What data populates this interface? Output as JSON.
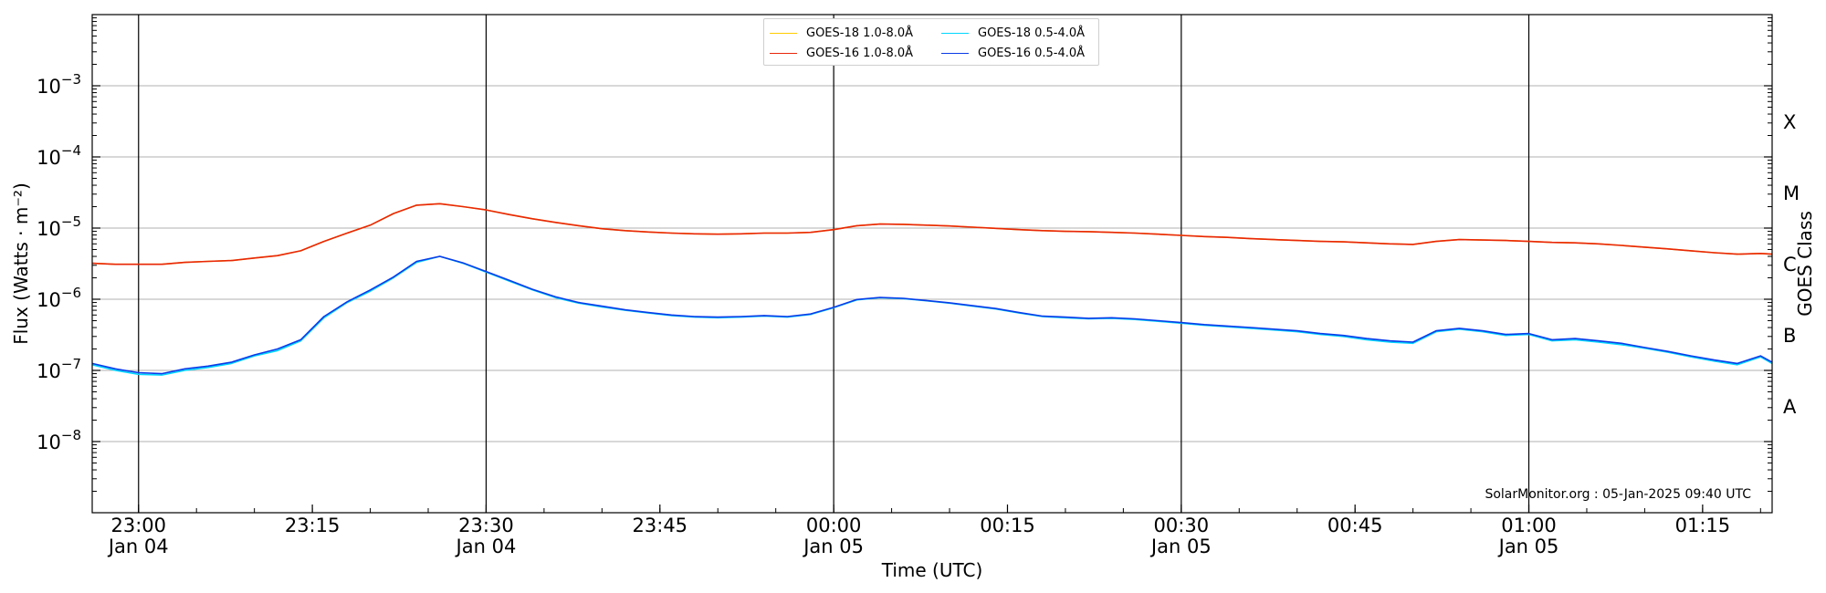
{
  "chart_data": {
    "type": "line",
    "ylabel": "Flux (Watts · m⁻²)",
    "xlabel": "Time (UTC)",
    "right_axis_label": "GOES Class",
    "y_scale": "log",
    "ylim": [
      1e-09,
      0.01
    ],
    "xlim": [
      "2025-01-04 22:56",
      "2025-01-05 01:21"
    ],
    "y_ticks": [
      {
        "value": 1e-08,
        "base": "10",
        "exp": "−8"
      },
      {
        "value": 1e-07,
        "base": "10",
        "exp": "−7"
      },
      {
        "value": 1e-06,
        "base": "10",
        "exp": "−6"
      },
      {
        "value": 1e-05,
        "base": "10",
        "exp": "−5"
      },
      {
        "value": 0.0001,
        "base": "10",
        "exp": "−4"
      },
      {
        "value": 0.001,
        "base": "10",
        "exp": "−3"
      }
    ],
    "x_ticks": [
      {
        "time": "2025-01-04 23:00",
        "label": "23:00",
        "date": "Jan 04",
        "major": true
      },
      {
        "time": "2025-01-04 23:15",
        "label": "23:15",
        "date": "",
        "major": false
      },
      {
        "time": "2025-01-04 23:30",
        "label": "23:30",
        "date": "Jan 04",
        "major": true
      },
      {
        "time": "2025-01-04 23:45",
        "label": "23:45",
        "date": "",
        "major": false
      },
      {
        "time": "2025-01-05 00:00",
        "label": "00:00",
        "date": "Jan 05",
        "major": true
      },
      {
        "time": "2025-01-05 00:15",
        "label": "00:15",
        "date": "",
        "major": false
      },
      {
        "time": "2025-01-05 00:30",
        "label": "00:30",
        "date": "Jan 05",
        "major": true
      },
      {
        "time": "2025-01-05 00:45",
        "label": "00:45",
        "date": "",
        "major": false
      },
      {
        "time": "2025-01-05 01:00",
        "label": "01:00",
        "date": "Jan 05",
        "major": true
      },
      {
        "time": "2025-01-05 01:15",
        "label": "01:15",
        "date": "",
        "major": false
      }
    ],
    "goes_classes": [
      {
        "label": "A",
        "level": 1e-08
      },
      {
        "label": "B",
        "level": 1e-07
      },
      {
        "label": "C",
        "level": 1e-06
      },
      {
        "label": "M",
        "level": 1e-05
      },
      {
        "label": "X",
        "level": 0.0001
      }
    ],
    "grid": true,
    "legend_position": "top-center",
    "x": [
      "22:56",
      "22:58",
      "23:00",
      "23:02",
      "23:04",
      "23:06",
      "23:08",
      "23:10",
      "23:12",
      "23:14",
      "23:16",
      "23:18",
      "23:20",
      "23:22",
      "23:24",
      "23:26",
      "23:28",
      "23:30",
      "23:32",
      "23:34",
      "23:36",
      "23:38",
      "23:40",
      "23:42",
      "23:44",
      "23:46",
      "23:48",
      "23:50",
      "23:52",
      "23:54",
      "23:56",
      "23:58",
      "00:00",
      "00:02",
      "00:04",
      "00:06",
      "00:08",
      "00:10",
      "00:12",
      "00:14",
      "00:16",
      "00:18",
      "00:20",
      "00:22",
      "00:24",
      "00:26",
      "00:28",
      "00:30",
      "00:32",
      "00:34",
      "00:36",
      "00:38",
      "00:40",
      "00:42",
      "00:44",
      "00:46",
      "00:48",
      "00:50",
      "00:52",
      "00:54",
      "00:56",
      "00:58",
      "01:00",
      "01:02",
      "01:04",
      "01:06",
      "01:08",
      "01:10",
      "01:12",
      "01:14",
      "01:16",
      "01:18",
      "01:20",
      "01:21"
    ],
    "series": [
      {
        "name": "GOES-18 1.0-8.0Å",
        "color": "#ffcc00",
        "values": [
          3.2e-06,
          3.1e-06,
          3.1e-06,
          3.1e-06,
          3.3e-06,
          3.4e-06,
          3.5e-06,
          3.8e-06,
          4.1e-06,
          4.8e-06,
          6.5e-06,
          8.5e-06,
          1.1e-05,
          1.6e-05,
          2.1e-05,
          2.2e-05,
          2e-05,
          1.8e-05,
          1.55e-05,
          1.35e-05,
          1.2e-05,
          1.08e-05,
          9.8e-06,
          9.2e-06,
          8.8e-06,
          8.5e-06,
          8.3e-06,
          8.2e-06,
          8.3e-06,
          8.5e-06,
          8.5e-06,
          8.7e-06,
          9.5e-06,
          1.08e-05,
          1.14e-05,
          1.13e-05,
          1.1e-05,
          1.07e-05,
          1.03e-05,
          9.9e-06,
          9.5e-06,
          9.2e-06,
          9e-06,
          8.9e-06,
          8.7e-06,
          8.5e-06,
          8.2e-06,
          7.9e-06,
          7.6e-06,
          7.4e-06,
          7.1e-06,
          6.9e-06,
          6.7e-06,
          6.5e-06,
          6.4e-06,
          6.2e-06,
          6e-06,
          5.9e-06,
          6.5e-06,
          6.9e-06,
          6.8e-06,
          6.7e-06,
          6.5e-06,
          6.3e-06,
          6.2e-06,
          6e-06,
          5.7e-06,
          5.4e-06,
          5.1e-06,
          4.8e-06,
          4.5e-06,
          4.3e-06,
          4.4e-06,
          4.3e-06
        ]
      },
      {
        "name": "GOES-18 0.5-4.0Å",
        "color": "#00d7ff",
        "values": [
          1.2e-07,
          1e-07,
          8.8e-08,
          8.6e-08,
          1e-07,
          1.1e-07,
          1.25e-07,
          1.6e-07,
          1.9e-07,
          2.6e-07,
          5.5e-07,
          9e-07,
          1.3e-06,
          2e-06,
          3.3e-06,
          4e-06,
          3.2e-06,
          2.4e-06,
          1.8e-06,
          1.35e-06,
          1.05e-06,
          8.8e-07,
          7.8e-07,
          7e-07,
          6.4e-07,
          5.9e-07,
          5.6e-07,
          5.5e-07,
          5.6e-07,
          5.8e-07,
          5.6e-07,
          6.1e-07,
          7.6e-07,
          9.8e-07,
          1.05e-06,
          1.02e-06,
          9.5e-07,
          8.8e-07,
          8e-07,
          7.3e-07,
          6.4e-07,
          5.7e-07,
          5.5e-07,
          5.3e-07,
          5.4e-07,
          5.2e-07,
          4.9e-07,
          4.6e-07,
          4.3e-07,
          4.1e-07,
          3.9e-07,
          3.7e-07,
          3.5e-07,
          3.2e-07,
          3e-07,
          2.7e-07,
          2.5e-07,
          2.4e-07,
          3.5e-07,
          3.8e-07,
          3.5e-07,
          3.1e-07,
          3.2e-07,
          2.6e-07,
          2.7e-07,
          2.5e-07,
          2.3e-07,
          2.05e-07,
          1.8e-07,
          1.55e-07,
          1.35e-07,
          1.2e-07,
          1.55e-07,
          1.25e-07
        ]
      },
      {
        "name": "GOES-16 1.0-8.0Å",
        "color": "#e8260a",
        "values": [
          3.2e-06,
          3.1e-06,
          3.1e-06,
          3.1e-06,
          3.3e-06,
          3.4e-06,
          3.5e-06,
          3.8e-06,
          4.1e-06,
          4.8e-06,
          6.5e-06,
          8.5e-06,
          1.1e-05,
          1.6e-05,
          2.1e-05,
          2.2e-05,
          2e-05,
          1.8e-05,
          1.55e-05,
          1.35e-05,
          1.2e-05,
          1.08e-05,
          9.8e-06,
          9.2e-06,
          8.8e-06,
          8.5e-06,
          8.3e-06,
          8.2e-06,
          8.3e-06,
          8.5e-06,
          8.5e-06,
          8.7e-06,
          9.5e-06,
          1.08e-05,
          1.14e-05,
          1.13e-05,
          1.1e-05,
          1.07e-05,
          1.03e-05,
          9.9e-06,
          9.5e-06,
          9.2e-06,
          9e-06,
          8.9e-06,
          8.7e-06,
          8.5e-06,
          8.2e-06,
          7.9e-06,
          7.6e-06,
          7.4e-06,
          7.1e-06,
          6.9e-06,
          6.7e-06,
          6.5e-06,
          6.4e-06,
          6.2e-06,
          6e-06,
          5.9e-06,
          6.5e-06,
          6.9e-06,
          6.8e-06,
          6.7e-06,
          6.5e-06,
          6.3e-06,
          6.2e-06,
          6e-06,
          5.7e-06,
          5.4e-06,
          5.1e-06,
          4.8e-06,
          4.5e-06,
          4.3e-06,
          4.4e-06,
          4.3e-06
        ]
      },
      {
        "name": "GOES-16 0.5-4.0Å",
        "color": "#0a3be8",
        "values": [
          1.25e-07,
          1.05e-07,
          9.3e-08,
          9e-08,
          1.05e-07,
          1.15e-07,
          1.3e-07,
          1.65e-07,
          2e-07,
          2.7e-07,
          5.7e-07,
          9.2e-07,
          1.35e-06,
          2.05e-06,
          3.4e-06,
          4e-06,
          3.25e-06,
          2.45e-06,
          1.85e-06,
          1.38e-06,
          1.08e-06,
          9e-07,
          8e-07,
          7.1e-07,
          6.5e-07,
          6e-07,
          5.7e-07,
          5.6e-07,
          5.7e-07,
          5.9e-07,
          5.7e-07,
          6.2e-07,
          7.7e-07,
          9.9e-07,
          1.06e-06,
          1.03e-06,
          9.6e-07,
          8.9e-07,
          8.1e-07,
          7.4e-07,
          6.5e-07,
          5.8e-07,
          5.6e-07,
          5.4e-07,
          5.5e-07,
          5.3e-07,
          5e-07,
          4.7e-07,
          4.4e-07,
          4.2e-07,
          4e-07,
          3.8e-07,
          3.6e-07,
          3.3e-07,
          3.1e-07,
          2.8e-07,
          2.6e-07,
          2.5e-07,
          3.6e-07,
          3.9e-07,
          3.6e-07,
          3.2e-07,
          3.3e-07,
          2.7e-07,
          2.8e-07,
          2.6e-07,
          2.4e-07,
          2.1e-07,
          1.85e-07,
          1.6e-07,
          1.4e-07,
          1.25e-07,
          1.6e-07,
          1.3e-07
        ]
      }
    ]
  },
  "credit": "SolarMonitor.org : 05-Jan-2025 09:40 UTC"
}
